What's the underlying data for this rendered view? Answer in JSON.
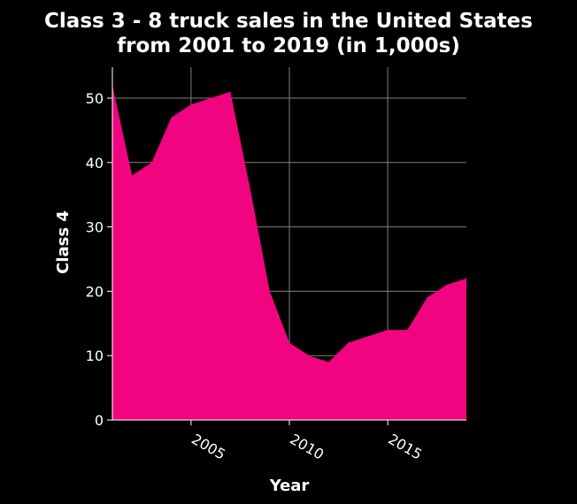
{
  "colors": {
    "background": "#000000",
    "area": "#f0047f",
    "grid": "#808080",
    "axis": "#ffffff",
    "text": "#ffffff"
  },
  "chart_data": {
    "type": "area",
    "title_lines": [
      "Class 3 - 8 truck sales in the United States",
      "from 2001 to 2019 (in 1,000s)"
    ],
    "xlabel": "Year",
    "ylabel": "Class 4",
    "xlim": [
      2001,
      2019
    ],
    "ylim": [
      0,
      52
    ],
    "x_ticks": [
      2005,
      2010,
      2015
    ],
    "y_ticks": [
      0,
      10,
      20,
      30,
      40,
      50
    ],
    "grid": true,
    "series": [
      {
        "x": [
          2001,
          2002,
          2003,
          2004,
          2005,
          2006,
          2007,
          2008,
          2009,
          2010,
          2011,
          2012,
          2013,
          2014,
          2015,
          2016,
          2017,
          2018,
          2019
        ],
        "values": [
          52,
          38,
          40,
          47,
          49,
          50,
          51,
          36,
          20,
          12,
          10,
          9,
          12,
          13,
          14,
          14,
          19,
          21,
          22
        ]
      }
    ]
  }
}
